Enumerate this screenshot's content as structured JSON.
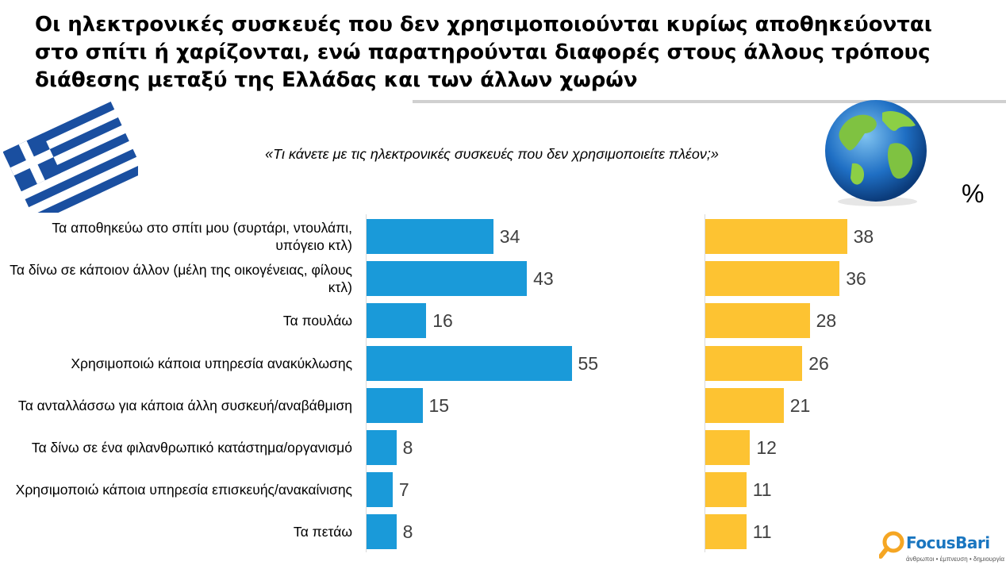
{
  "title": "Οι ηλεκτρονικές συσκευές που δεν χρησιμοποιούνται κυρίως αποθηκεύονται στο σπίτι ή χαρίζονται, ενώ παρατηρούνται διαφορές στους άλλους τρόπους διάθεσης μεταξύ της Ελλάδας και των άλλων χωρών",
  "subtitle": "«Τι κάνετε με τις ηλεκτρονικές συσκευές που δεν χρησιμοποιείτε πλέον;»",
  "unit": "%",
  "logo": {
    "name": "FocusBari",
    "tagline": "άνθρωποι • έμπνευση • δημιουργία"
  },
  "colors": {
    "greece": "#1a9ad9",
    "world": "#fdc332"
  },
  "icons": {
    "left": "greek-flag-icon",
    "right": "globe-icon"
  },
  "chart_data": {
    "type": "bar",
    "orientation": "horizontal",
    "title": "«Τι κάνετε με τις ηλεκτρονικές συσκευές που δεν χρησιμοποιείτε πλέον;»",
    "ylabel": "%",
    "categories": [
      "Τα αποθηκεύω στο σπίτι μου (συρτάρι, ντουλάπι, υπόγειο κτλ)",
      "Τα δίνω σε κάποιον άλλον (μέλη της οικογένειας, φίλους κτλ)",
      "Τα πουλάω",
      "Χρησιμοποιώ κάποια υπηρεσία ανακύκλωσης",
      "Τα ανταλλάσσω για κάποια άλλη συσκευή/αναβάθμιση",
      "Τα δίνω σε ένα φιλανθρωπικό κατάστημα/οργανισμό",
      "Χρησιμοποιώ κάποια υπηρεσία επισκευής/ανακαίνισης",
      "Τα πετάω"
    ],
    "series": [
      {
        "values": [
          34,
          43,
          16,
          55,
          15,
          8,
          7,
          8
        ]
      },
      {
        "values": [
          38,
          36,
          28,
          26,
          21,
          12,
          11,
          11
        ]
      }
    ],
    "xlim": [
      0,
      60
    ],
    "grid": false,
    "data_labels": true
  }
}
